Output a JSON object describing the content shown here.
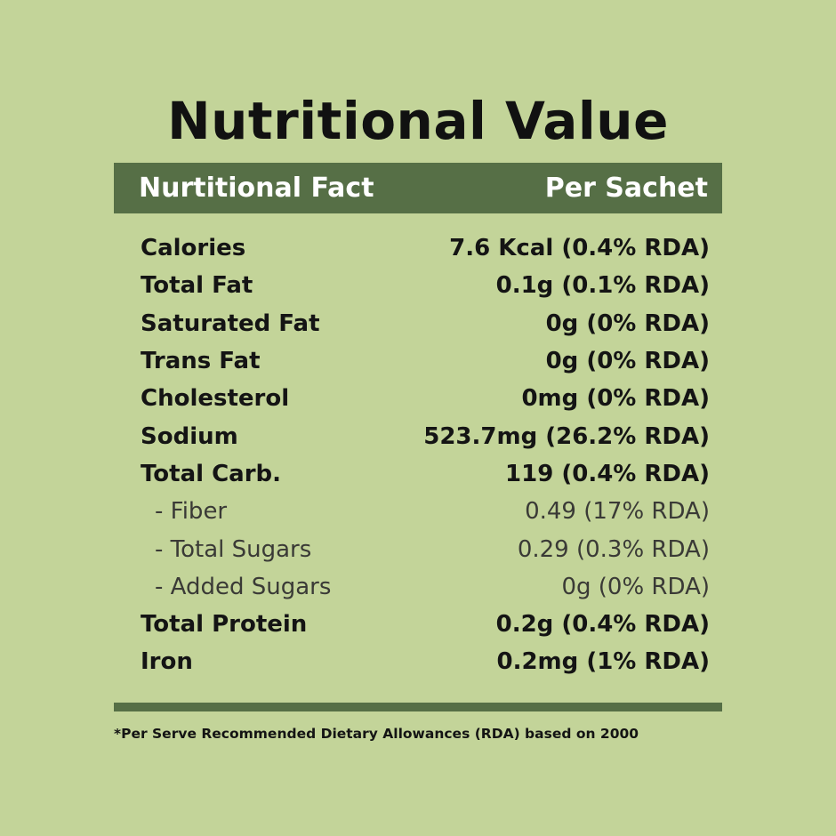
{
  "title": "Nutritional Value",
  "header": {
    "left": "Nurtitional Fact",
    "right": "Per Sachet"
  },
  "rows": [
    {
      "name": "Calories",
      "value": "7.6 Kcal (0.4% RDA)",
      "style": "bold"
    },
    {
      "name": "Total Fat",
      "value": "0.1g (0.1% RDA)",
      "style": "bold"
    },
    {
      "name": "Saturated Fat",
      "value": "0g (0% RDA)",
      "style": "bold"
    },
    {
      "name": "Trans Fat",
      "value": "0g (0% RDA)",
      "style": "bold"
    },
    {
      "name": "Cholesterol",
      "value": "0mg (0% RDA)",
      "style": "bold"
    },
    {
      "name": "Sodium",
      "value": "523.7mg (26.2% RDA)",
      "style": "bold"
    },
    {
      "name": "Total Carb.",
      "value": "119 (0.4% RDA)",
      "style": "bold"
    },
    {
      "name": "- Fiber",
      "value": "0.49 (17% RDA)",
      "style": "sub"
    },
    {
      "name": "- Total Sugars",
      "value": "0.29 (0.3% RDA)",
      "style": "sub"
    },
    {
      "name": "- Added Sugars",
      "value": "0g (0% RDA)",
      "style": "sub"
    },
    {
      "name": "Total Protein",
      "value": "0.2g (0.4% RDA)",
      "style": "bold"
    },
    {
      "name": "Iron",
      "value": "0.2mg (1% RDA)",
      "style": "bold"
    }
  ],
  "footnote": "*Per Serve Recommended Dietary Allowances (RDA) based on 2000",
  "colors": {
    "background": "#c3d499",
    "accent": "#566f46",
    "text": "#141414"
  }
}
